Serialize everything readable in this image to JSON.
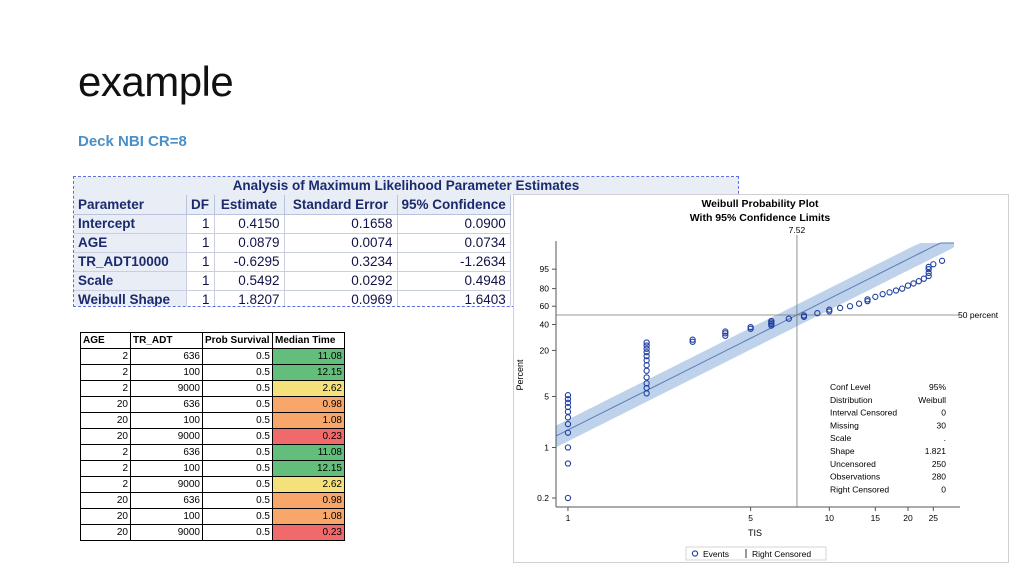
{
  "slide": {
    "title": "example",
    "subtitle": "Deck NBI CR=8"
  },
  "mle_table": {
    "caption": "Analysis of Maximum Likelihood Parameter Estimates",
    "headers": [
      "Parameter",
      "DF",
      "Estimate",
      "Standard Error",
      "95% Confidence"
    ],
    "rows": [
      [
        "Intercept",
        "1",
        "0.4150",
        "0.1658",
        "0.0900"
      ],
      [
        "AGE",
        "1",
        "0.0879",
        "0.0074",
        "0.0734"
      ],
      [
        "TR_ADT10000",
        "1",
        "-0.6295",
        "0.3234",
        "-1.2634"
      ],
      [
        "Scale",
        "1",
        "0.5492",
        "0.0292",
        "0.4948"
      ],
      [
        "Weibull Shape",
        "1",
        "1.8207",
        "0.0969",
        "1.6403"
      ]
    ]
  },
  "pred_table": {
    "headers": [
      "AGE",
      "TR_ADT",
      "Prob Survival",
      "Median Time"
    ],
    "rows": [
      [
        "2",
        "636",
        "0.5",
        "11.08"
      ],
      [
        "2",
        "100",
        "0.5",
        "12.15"
      ],
      [
        "2",
        "9000",
        "0.5",
        "2.62"
      ],
      [
        "20",
        "636",
        "0.5",
        "0.98"
      ],
      [
        "20",
        "100",
        "0.5",
        "1.08"
      ],
      [
        "20",
        "9000",
        "0.5",
        "0.23"
      ],
      [
        "2",
        "636",
        "0.5",
        "11.08"
      ],
      [
        "2",
        "100",
        "0.5",
        "12.15"
      ],
      [
        "2",
        "9000",
        "0.5",
        "2.62"
      ],
      [
        "20",
        "636",
        "0.5",
        "0.98"
      ],
      [
        "20",
        "100",
        "0.5",
        "1.08"
      ],
      [
        "20",
        "9000",
        "0.5",
        "0.23"
      ]
    ],
    "median_colors": [
      "#63be7b",
      "#63be7b",
      "#f5e17c",
      "#f8a66a",
      "#f8a66a",
      "#f06a6c",
      "#63be7b",
      "#63be7b",
      "#f5e17c",
      "#f8a66a",
      "#f8a66a",
      "#f06a6c"
    ]
  },
  "chart_data": {
    "type": "scatter",
    "title": "Weibull Probability Plot",
    "subtitle": "With 95% Confidence Limits",
    "xlabel": "TIS",
    "ylabel": "Percent",
    "x_scale": "log",
    "y_scale": "weibull",
    "xlim": [
      0.9,
      30
    ],
    "ylim": [
      0.15,
      99.9
    ],
    "x_ticks": [
      1,
      5,
      10,
      15,
      20,
      25
    ],
    "x_tick_labels": [
      "1",
      "5",
      "10",
      "15",
      "20",
      "25"
    ],
    "y_ticks": [
      0.2,
      1,
      5,
      20,
      40,
      60,
      80,
      95
    ],
    "y_tick_labels": [
      "0.2",
      "1",
      "5",
      "20",
      "40",
      "60",
      "80",
      "95"
    ],
    "reference_x": 7.52,
    "reference_x_label": "7.52",
    "reference_y": 50,
    "reference_y_label": "50 percent",
    "fit_line": {
      "shape": 1.821,
      "median": 7.52
    },
    "confidence_band": {
      "lower_factor": 0.82,
      "upper_factor": 1.2
    },
    "series": [
      {
        "name": "Events",
        "marker": "circle",
        "points": [
          {
            "x": 1,
            "y": 0.2
          },
          {
            "x": 1,
            "y": 0.6
          },
          {
            "x": 1,
            "y": 1.0
          },
          {
            "x": 1,
            "y": 1.6
          },
          {
            "x": 1,
            "y": 2.1
          },
          {
            "x": 1,
            "y": 2.6
          },
          {
            "x": 1,
            "y": 3.1
          },
          {
            "x": 1,
            "y": 3.6
          },
          {
            "x": 1,
            "y": 4.1
          },
          {
            "x": 1,
            "y": 4.6
          },
          {
            "x": 1,
            "y": 5.2
          },
          {
            "x": 2,
            "y": 5.5
          },
          {
            "x": 2,
            "y": 6.5
          },
          {
            "x": 2,
            "y": 7.5
          },
          {
            "x": 2,
            "y": 9
          },
          {
            "x": 2,
            "y": 11
          },
          {
            "x": 2,
            "y": 13
          },
          {
            "x": 2,
            "y": 15
          },
          {
            "x": 2,
            "y": 17
          },
          {
            "x": 2,
            "y": 19
          },
          {
            "x": 2,
            "y": 21
          },
          {
            "x": 2,
            "y": 23
          },
          {
            "x": 2,
            "y": 25
          },
          {
            "x": 3,
            "y": 25.5
          },
          {
            "x": 3,
            "y": 27
          },
          {
            "x": 4,
            "y": 30
          },
          {
            "x": 4,
            "y": 32
          },
          {
            "x": 4,
            "y": 33.5
          },
          {
            "x": 5,
            "y": 36
          },
          {
            "x": 5,
            "y": 37.5
          },
          {
            "x": 6,
            "y": 39
          },
          {
            "x": 6,
            "y": 40.5
          },
          {
            "x": 6,
            "y": 42
          },
          {
            "x": 6,
            "y": 43.5
          },
          {
            "x": 7,
            "y": 46
          },
          {
            "x": 8,
            "y": 48
          },
          {
            "x": 8,
            "y": 49.5
          },
          {
            "x": 9,
            "y": 52
          },
          {
            "x": 10,
            "y": 54
          },
          {
            "x": 10,
            "y": 56
          },
          {
            "x": 11,
            "y": 58
          },
          {
            "x": 12,
            "y": 60
          },
          {
            "x": 13,
            "y": 63
          },
          {
            "x": 14,
            "y": 66
          },
          {
            "x": 14,
            "y": 68
          },
          {
            "x": 15,
            "y": 71
          },
          {
            "x": 16,
            "y": 74
          },
          {
            "x": 17,
            "y": 76
          },
          {
            "x": 18,
            "y": 78
          },
          {
            "x": 19,
            "y": 80
          },
          {
            "x": 20,
            "y": 83
          },
          {
            "x": 21,
            "y": 85
          },
          {
            "x": 22,
            "y": 87
          },
          {
            "x": 23,
            "y": 89
          },
          {
            "x": 24,
            "y": 91
          },
          {
            "x": 24,
            "y": 93
          },
          {
            "x": 24,
            "y": 95
          },
          {
            "x": 24,
            "y": 96
          },
          {
            "x": 25,
            "y": 97
          },
          {
            "x": 27,
            "y": 98
          }
        ]
      }
    ],
    "legend": {
      "placement": "bottom",
      "entries": [
        "Events",
        "Right Censored"
      ]
    },
    "inset_table": {
      "placement": "bottom-right",
      "rows": [
        [
          "Conf Level",
          "95%"
        ],
        [
          "Distribution",
          "Weibull"
        ],
        [
          "Interval Censored",
          "0"
        ],
        [
          "Missing",
          "30"
        ],
        [
          "Scale",
          "."
        ],
        [
          "Shape",
          "1.821"
        ],
        [
          "Uncensored",
          "250"
        ],
        [
          "Observations",
          "280"
        ],
        [
          "Right Censored",
          "0"
        ]
      ]
    },
    "colors": {
      "points": "#1f3fa0",
      "band": "#a9c3e6",
      "fit": "#5b7cb5",
      "ref": "#777777"
    }
  }
}
